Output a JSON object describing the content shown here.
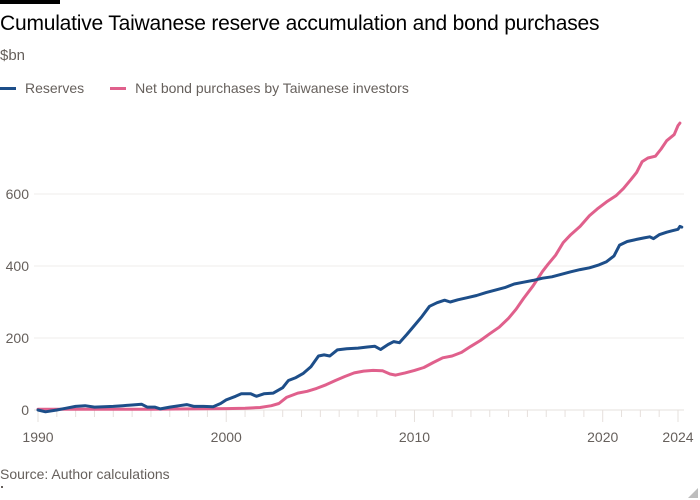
{
  "chart_data": {
    "type": "line",
    "title": "Cumulative Taiwanese reserve accumulation and bond purchases",
    "subtitle": "$bn",
    "xlabel": "",
    "ylabel": "$bn",
    "xlim": [
      1990,
      2024.1
    ],
    "ylim": [
      0,
      800
    ],
    "x_ticks": [
      1990,
      2000,
      2010,
      2020,
      2024
    ],
    "x_tick_labels": [
      "1990",
      "2000",
      "2010",
      "2020",
      "2024"
    ],
    "y_ticks": [
      0,
      200,
      400,
      600
    ],
    "y_tick_labels": [
      "0",
      "200",
      "400",
      "600"
    ],
    "grid": true,
    "legend_position": "top-left",
    "series": [
      {
        "name": "Reserves",
        "color": "#1d4e89",
        "points": [
          [
            1990.0,
            0
          ],
          [
            1990.4,
            -5
          ],
          [
            1991.0,
            0
          ],
          [
            1991.5,
            5
          ],
          [
            1992.0,
            10
          ],
          [
            1992.5,
            12
          ],
          [
            1993.0,
            8
          ],
          [
            1993.5,
            9
          ],
          [
            1994.0,
            10
          ],
          [
            1994.5,
            12
          ],
          [
            1995.0,
            14
          ],
          [
            1995.5,
            16
          ],
          [
            1995.8,
            8
          ],
          [
            1996.2,
            8
          ],
          [
            1996.5,
            3
          ],
          [
            1997.0,
            8
          ],
          [
            1997.5,
            12
          ],
          [
            1997.9,
            15
          ],
          [
            1998.3,
            10
          ],
          [
            1998.8,
            10
          ],
          [
            1999.3,
            9
          ],
          [
            1999.7,
            18
          ],
          [
            2000.0,
            28
          ],
          [
            2000.5,
            38
          ],
          [
            2000.8,
            45
          ],
          [
            2001.3,
            45
          ],
          [
            2001.6,
            38
          ],
          [
            2002.0,
            45
          ],
          [
            2002.5,
            47
          ],
          [
            2003.0,
            62
          ],
          [
            2003.3,
            82
          ],
          [
            2003.7,
            90
          ],
          [
            2004.1,
            102
          ],
          [
            2004.5,
            120
          ],
          [
            2004.9,
            150
          ],
          [
            2005.2,
            153
          ],
          [
            2005.5,
            150
          ],
          [
            2005.9,
            167
          ],
          [
            2006.4,
            170
          ],
          [
            2007.0,
            172
          ],
          [
            2007.5,
            175
          ],
          [
            2007.9,
            177
          ],
          [
            2008.2,
            168
          ],
          [
            2008.6,
            182
          ],
          [
            2008.9,
            190
          ],
          [
            2009.2,
            187
          ],
          [
            2009.6,
            210
          ],
          [
            2010.0,
            235
          ],
          [
            2010.4,
            260
          ],
          [
            2010.8,
            288
          ],
          [
            2011.2,
            298
          ],
          [
            2011.6,
            305
          ],
          [
            2011.9,
            300
          ],
          [
            2012.3,
            306
          ],
          [
            2012.8,
            312
          ],
          [
            2013.3,
            318
          ],
          [
            2013.8,
            326
          ],
          [
            2014.3,
            333
          ],
          [
            2014.8,
            340
          ],
          [
            2015.3,
            350
          ],
          [
            2015.8,
            355
          ],
          [
            2016.3,
            360
          ],
          [
            2016.8,
            366
          ],
          [
            2017.3,
            370
          ],
          [
            2017.8,
            377
          ],
          [
            2018.3,
            384
          ],
          [
            2018.8,
            390
          ],
          [
            2019.3,
            395
          ],
          [
            2019.8,
            403
          ],
          [
            2020.2,
            412
          ],
          [
            2020.6,
            428
          ],
          [
            2020.9,
            458
          ],
          [
            2021.3,
            468
          ],
          [
            2021.8,
            474
          ],
          [
            2022.2,
            478
          ],
          [
            2022.5,
            481
          ],
          [
            2022.7,
            476
          ],
          [
            2023.0,
            487
          ],
          [
            2023.4,
            494
          ],
          [
            2023.7,
            498
          ],
          [
            2024.0,
            502
          ],
          [
            2024.2,
            508
          ],
          [
            2024.1,
            510
          ]
        ]
      },
      {
        "name": "Net bond purchases by Taiwanese investors",
        "color": "#e0608c",
        "points": [
          [
            1990.0,
            2
          ],
          [
            1992.0,
            2
          ],
          [
            1994.0,
            2
          ],
          [
            1996.0,
            2
          ],
          [
            1998.0,
            3
          ],
          [
            2000.0,
            4
          ],
          [
            2001.0,
            5
          ],
          [
            2001.8,
            7
          ],
          [
            2002.4,
            12
          ],
          [
            2002.8,
            18
          ],
          [
            2003.2,
            35
          ],
          [
            2003.8,
            47
          ],
          [
            2004.3,
            52
          ],
          [
            2004.8,
            60
          ],
          [
            2005.3,
            70
          ],
          [
            2005.8,
            82
          ],
          [
            2006.3,
            93
          ],
          [
            2006.8,
            103
          ],
          [
            2007.3,
            108
          ],
          [
            2007.8,
            110
          ],
          [
            2008.3,
            109
          ],
          [
            2008.7,
            100
          ],
          [
            2009.0,
            97
          ],
          [
            2009.5,
            103
          ],
          [
            2010.0,
            110
          ],
          [
            2010.5,
            118
          ],
          [
            2011.0,
            132
          ],
          [
            2011.5,
            145
          ],
          [
            2012.0,
            150
          ],
          [
            2012.5,
            160
          ],
          [
            2013.0,
            177
          ],
          [
            2013.5,
            193
          ],
          [
            2014.0,
            212
          ],
          [
            2014.5,
            230
          ],
          [
            2015.0,
            255
          ],
          [
            2015.4,
            280
          ],
          [
            2015.8,
            310
          ],
          [
            2016.3,
            345
          ],
          [
            2016.8,
            385
          ],
          [
            2017.1,
            405
          ],
          [
            2017.5,
            430
          ],
          [
            2017.9,
            465
          ],
          [
            2018.3,
            487
          ],
          [
            2018.8,
            510
          ],
          [
            2019.3,
            540
          ],
          [
            2019.7,
            558
          ],
          [
            2020.2,
            578
          ],
          [
            2020.7,
            595
          ],
          [
            2021.1,
            615
          ],
          [
            2021.5,
            640
          ],
          [
            2021.8,
            660
          ],
          [
            2022.1,
            690
          ],
          [
            2022.4,
            700
          ],
          [
            2022.8,
            705
          ],
          [
            2023.1,
            725
          ],
          [
            2023.4,
            748
          ],
          [
            2023.8,
            765
          ],
          [
            2024.0,
            790
          ],
          [
            2024.1,
            797
          ]
        ]
      }
    ]
  },
  "header": {
    "title": "Cumulative Taiwanese reserve accumulation and bond purchases",
    "subtitle": "$bn"
  },
  "legend": [
    {
      "label": "Reserves",
      "color": "#1d4e89"
    },
    {
      "label": "Net bond purchases by Taiwanese investors",
      "color": "#e0608c"
    }
  ],
  "footer": {
    "source": "Source: Author calculations"
  }
}
